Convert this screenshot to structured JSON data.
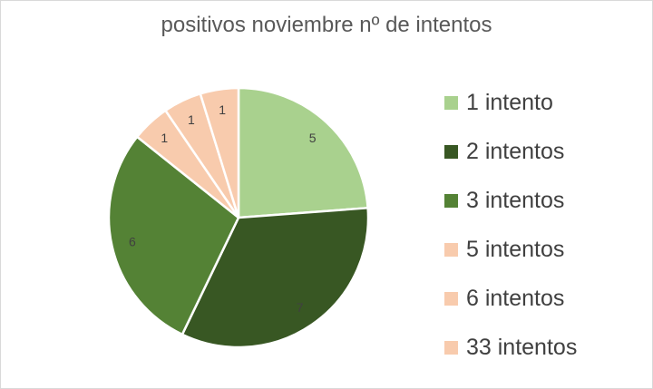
{
  "chart_data": {
    "type": "pie",
    "title": "positivos noviembre nº de intentos",
    "categories": [
      "1 intento",
      "2 intentos",
      "3 intentos",
      "5 intentos",
      "6 intentos",
      "33 intentos"
    ],
    "values": [
      5,
      7,
      6,
      1,
      1,
      1
    ],
    "data_labels": [
      "5",
      "7",
      "6",
      "1",
      "1",
      "1"
    ],
    "colors": [
      "#a9d18e",
      "#385723",
      "#548235",
      "#f8cbad",
      "#f8cbad",
      "#f8cbad"
    ],
    "legend_position": "right"
  }
}
